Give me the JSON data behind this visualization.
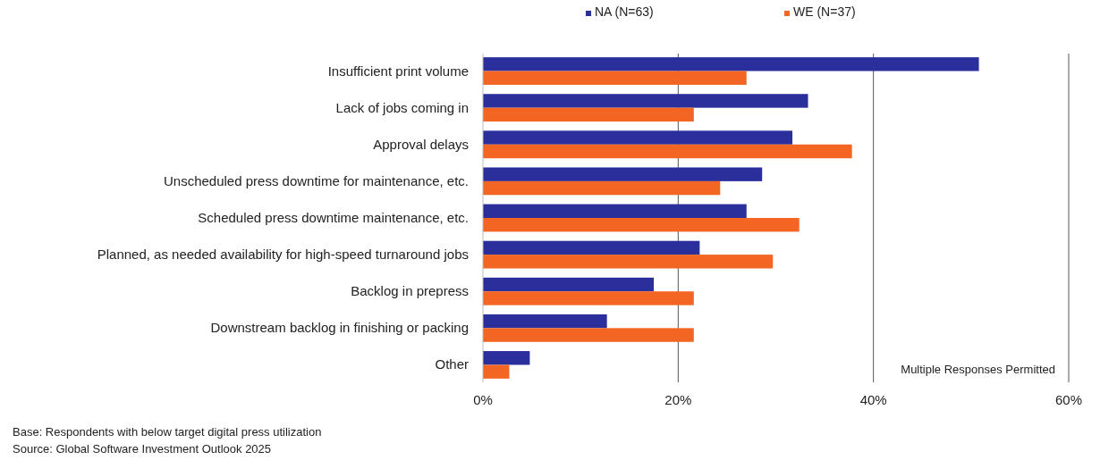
{
  "chart_data": {
    "type": "bar",
    "orientation": "horizontal",
    "categories": [
      "Insufficient print volume",
      "Lack of jobs coming in",
      "Approval delays",
      "Unscheduled press downtime for maintenance, etc.",
      "Scheduled press downtime maintenance, etc.",
      "Planned, as needed availability for high-speed turnaround jobs",
      "Backlog in prepress",
      "Downstream backlog in finishing or packing",
      "Other"
    ],
    "series": [
      {
        "name": "NA (N=63)",
        "color": "#2a2f9c",
        "values": [
          50.8,
          33.3,
          31.7,
          28.6,
          27.0,
          22.2,
          17.5,
          12.7,
          4.8
        ]
      },
      {
        "name": "WE (N=37)",
        "color": "#f26522",
        "values": [
          27.0,
          21.6,
          37.8,
          24.3,
          32.4,
          29.7,
          21.6,
          21.6,
          2.7
        ]
      }
    ],
    "xlim": [
      0,
      60
    ],
    "xticks": [
      {
        "value": 0,
        "label": "0%"
      },
      {
        "value": 20,
        "label": "20%"
      },
      {
        "value": 40,
        "label": "40%"
      },
      {
        "value": 60,
        "label": "60%"
      }
    ],
    "grid": "x",
    "legend": "top",
    "annotations": [
      "Multiple Responses Permitted",
      "Base: Respondents with below target digital press utilization",
      "Source: Global Software Investment Outlook 2025"
    ]
  }
}
